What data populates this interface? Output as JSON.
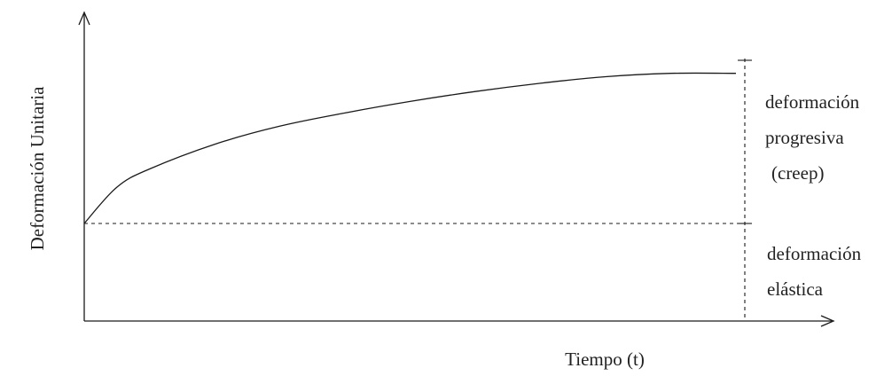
{
  "chart_data": {
    "type": "line",
    "title": "",
    "xlabel": "Tiempo (t)",
    "ylabel": "Deformación Unitaria",
    "grid": false,
    "legend": "none",
    "curve": {
      "description_hidden": true,
      "x": [
        0,
        0.05,
        0.1,
        0.2,
        0.3,
        0.4,
        0.5,
        0.6,
        0.7,
        0.8,
        0.9,
        1.0
      ],
      "y": [
        0.0,
        0.22,
        0.33,
        0.48,
        0.59,
        0.67,
        0.74,
        0.8,
        0.85,
        0.89,
        0.91,
        0.91
      ]
    },
    "elastic_level": 0.0,
    "annotations": {
      "creep": [
        "deformación",
        "progresiva",
        "(creep)"
      ],
      "elastic": [
        "deformación",
        "elástica"
      ]
    },
    "colors": {
      "line": "#1a1a1a",
      "axis": "#1a1a1a"
    }
  }
}
